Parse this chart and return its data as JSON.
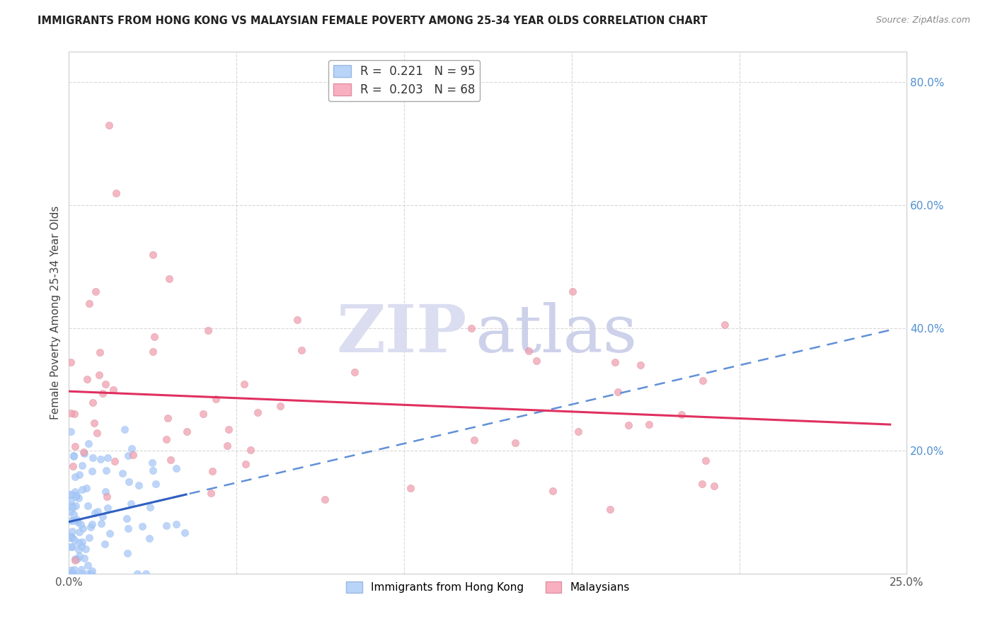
{
  "title": "IMMIGRANTS FROM HONG KONG VS MALAYSIAN FEMALE POVERTY AMONG 25-34 YEAR OLDS CORRELATION CHART",
  "source": "Source: ZipAtlas.com",
  "ylabel": "Female Poverty Among 25-34 Year Olds",
  "xlim": [
    0.0,
    0.25
  ],
  "ylim": [
    0.0,
    0.85
  ],
  "hk_color": "#a8c8f8",
  "hk_line_color": "#3060c0",
  "hk_line_dashed_color": "#6090d8",
  "mal_color": "#f0a0b0",
  "mal_line_color": "#e03060",
  "watermark_zip_color": "#d8daf0",
  "watermark_atlas_color": "#c8cce8",
  "background_color": "#ffffff",
  "grid_color": "#d8d8d8",
  "hk_R": 0.221,
  "hk_N": 95,
  "mal_R": 0.203,
  "mal_N": 68,
  "right_tick_color": "#5090d0",
  "title_color": "#222222",
  "source_color": "#888888",
  "ylabel_color": "#444444"
}
